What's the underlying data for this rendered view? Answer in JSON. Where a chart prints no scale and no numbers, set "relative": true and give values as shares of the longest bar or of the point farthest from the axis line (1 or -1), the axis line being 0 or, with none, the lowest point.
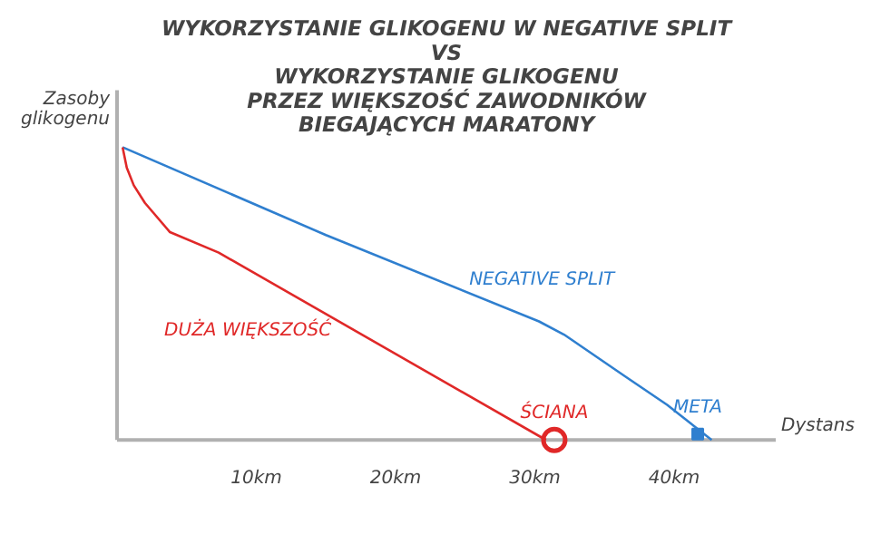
{
  "chart_data": {
    "type": "line",
    "relative": true,
    "title": "WYKORZYSTANIE GLIKOGENU W NEGATIVE SPLIT\nVS\nWYKORZYSTANIE GLIKOGENU\nPRZEZ WIĘKSZOŚĆ ZAWODNIKÓW\nBIEGAJĄCYCH MARATONY",
    "xlabel": "Dystans",
    "ylabel": "Zasoby\nglikogenu",
    "xlim": [
      0,
      47.3
    ],
    "xticks": [
      {
        "value": 10,
        "label": "10km"
      },
      {
        "value": 20,
        "label": "20km"
      },
      {
        "value": 30,
        "label": "30km"
      },
      {
        "value": 40,
        "label": "40km"
      }
    ],
    "tick_labels": "x",
    "grid": false,
    "marker": "none",
    "line_style": "solid",
    "series": [
      {
        "name": "NEGATIVE SPLIT",
        "color": "#2f7fcf",
        "x": [
          0.4,
          15,
          30.3,
          32.1,
          36.4,
          39.5,
          42.7
        ],
        "values": [
          1,
          0.7,
          0.405,
          0.36,
          0.22,
          0.12,
          0
        ]
      },
      {
        "name": "DUŻA WIĘKSZOŚĆ",
        "color": "#e02828",
        "x": [
          0.4,
          0.7,
          1.2,
          2.0,
          3.8,
          7.3,
          30.8
        ],
        "values": [
          1,
          0.93,
          0.87,
          0.81,
          0.71,
          0.64,
          0
        ]
      },
      {
        "type": "scatter",
        "marker": "circle",
        "color": "#e02828",
        "x": [
          31.4
        ],
        "values": [
          0
        ]
      },
      {
        "type": "scatter",
        "marker": "square",
        "color": "#2f7fcf",
        "x": [
          41.7
        ],
        "values": [
          0.02
        ]
      }
    ],
    "annotations": [
      {
        "text": "ŚCIANA",
        "x": 31.4,
        "y": 0
      },
      {
        "text": "META",
        "x": 41.7,
        "y": 0.02
      }
    ]
  }
}
